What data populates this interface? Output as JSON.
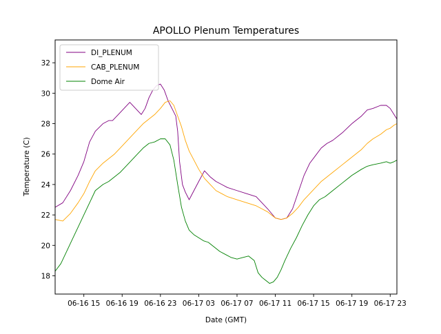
{
  "chart_data": {
    "type": "line",
    "title": "APOLLO Plenum Temperatures",
    "xlabel": "Date (GMT)",
    "ylabel": "Temperature (C)",
    "x_unit": "hours since 06-16 00:00 GMT",
    "xlim": [
      12.0,
      47.7
    ],
    "ylim": [
      16.8,
      33.5
    ],
    "x_ticks": [
      {
        "value": 15,
        "label": "06-16 15"
      },
      {
        "value": 19,
        "label": "06-16 19"
      },
      {
        "value": 23,
        "label": "06-16 23"
      },
      {
        "value": 27,
        "label": "06-17 03"
      },
      {
        "value": 31,
        "label": "06-17 07"
      },
      {
        "value": 35,
        "label": "06-17 11"
      },
      {
        "value": 39,
        "label": "06-17 15"
      },
      {
        "value": 43,
        "label": "06-17 19"
      },
      {
        "value": 47,
        "label": "06-17 23"
      }
    ],
    "y_ticks": [
      {
        "value": 18,
        "label": "18"
      },
      {
        "value": 20,
        "label": "20"
      },
      {
        "value": 22,
        "label": "22"
      },
      {
        "value": 24,
        "label": "24"
      },
      {
        "value": 26,
        "label": "26"
      },
      {
        "value": 28,
        "label": "28"
      },
      {
        "value": 30,
        "label": "30"
      },
      {
        "value": 32,
        "label": "32"
      }
    ],
    "grid": false,
    "legend_position": "top-left",
    "series": [
      {
        "name": "DI_PLENUM",
        "color": "#800080",
        "x": [
          12.0,
          12.8,
          13.6,
          14.4,
          15.0,
          15.6,
          16.2,
          17.0,
          17.6,
          18.0,
          18.6,
          19.2,
          19.8,
          20.4,
          21.0,
          21.4,
          21.8,
          22.2,
          22.6,
          23.0,
          23.4,
          23.8,
          24.2,
          24.6,
          24.8,
          25.0,
          25.3,
          25.6,
          26.0,
          26.5,
          27.0,
          27.6,
          28.2,
          28.8,
          29.4,
          30.0,
          31.0,
          32.0,
          33.0,
          33.6,
          34.2,
          34.6,
          35.0,
          35.6,
          36.2,
          36.8,
          37.4,
          38.0,
          38.6,
          39.2,
          39.8,
          40.4,
          41.0,
          42.0,
          43.0,
          44.0,
          44.6,
          45.2,
          46.0,
          46.6,
          47.0,
          47.4,
          47.7
        ],
        "y": [
          22.5,
          22.8,
          23.6,
          24.6,
          25.5,
          26.8,
          27.5,
          28.0,
          28.2,
          28.2,
          28.6,
          29.0,
          29.4,
          29.0,
          28.6,
          29.0,
          29.7,
          30.2,
          30.5,
          30.6,
          30.2,
          29.5,
          29.0,
          28.5,
          27.5,
          25.5,
          24.0,
          23.5,
          23.0,
          23.6,
          24.2,
          24.9,
          24.5,
          24.2,
          24.0,
          23.8,
          23.6,
          23.4,
          23.2,
          22.8,
          22.4,
          22.1,
          21.8,
          21.7,
          21.8,
          22.4,
          23.5,
          24.6,
          25.4,
          25.9,
          26.4,
          26.7,
          26.9,
          27.4,
          28.0,
          28.5,
          28.9,
          29.0,
          29.2,
          29.2,
          29.0,
          28.6,
          28.3
        ]
      },
      {
        "name": "CAB_PLENUM",
        "color": "#FFA500",
        "x": [
          12.0,
          12.8,
          13.6,
          14.4,
          15.0,
          15.6,
          16.2,
          17.0,
          17.6,
          18.2,
          18.8,
          19.4,
          20.0,
          20.6,
          21.2,
          21.8,
          22.4,
          23.0,
          23.5,
          24.0,
          24.4,
          24.8,
          25.2,
          25.6,
          26.0,
          26.5,
          27.0,
          27.6,
          28.2,
          28.8,
          29.4,
          30.0,
          31.0,
          32.0,
          33.0,
          33.6,
          34.2,
          34.6,
          35.0,
          35.6,
          36.2,
          36.8,
          37.4,
          38.0,
          38.6,
          39.2,
          39.8,
          40.4,
          41.0,
          42.0,
          43.0,
          44.0,
          44.6,
          45.2,
          46.0,
          46.6,
          47.0,
          47.4,
          47.7
        ],
        "y": [
          21.7,
          21.6,
          22.1,
          22.8,
          23.4,
          24.2,
          24.9,
          25.4,
          25.7,
          26.0,
          26.4,
          26.8,
          27.2,
          27.6,
          28.0,
          28.3,
          28.6,
          29.0,
          29.4,
          29.5,
          29.2,
          28.5,
          27.8,
          26.9,
          26.2,
          25.6,
          25.0,
          24.4,
          24.0,
          23.6,
          23.4,
          23.2,
          23.0,
          22.8,
          22.6,
          22.4,
          22.2,
          22.0,
          21.8,
          21.7,
          21.8,
          22.1,
          22.5,
          23.0,
          23.4,
          23.8,
          24.2,
          24.5,
          24.8,
          25.3,
          25.8,
          26.3,
          26.7,
          27.0,
          27.3,
          27.6,
          27.7,
          27.9,
          28.0
        ]
      },
      {
        "name": "Dome Air",
        "color": "#008000",
        "x": [
          12.0,
          12.6,
          13.2,
          13.8,
          14.4,
          15.0,
          15.6,
          16.2,
          17.0,
          17.6,
          18.2,
          18.8,
          19.4,
          20.0,
          20.6,
          21.2,
          21.8,
          22.4,
          23.0,
          23.5,
          24.0,
          24.4,
          24.8,
          25.2,
          25.6,
          26.0,
          26.5,
          27.0,
          27.5,
          28.0,
          28.6,
          29.2,
          29.8,
          30.4,
          31.0,
          31.6,
          32.2,
          32.8,
          33.2,
          33.6,
          34.0,
          34.4,
          34.8,
          35.2,
          35.6,
          36.0,
          36.6,
          37.2,
          37.8,
          38.4,
          39.0,
          39.6,
          40.2,
          41.0,
          42.0,
          43.0,
          44.0,
          44.6,
          45.2,
          46.0,
          46.6,
          47.0,
          47.4,
          47.7
        ],
        "y": [
          18.3,
          18.8,
          19.6,
          20.4,
          21.2,
          22.0,
          22.8,
          23.6,
          24.0,
          24.2,
          24.5,
          24.8,
          25.2,
          25.6,
          26.0,
          26.4,
          26.7,
          26.8,
          27.0,
          27.0,
          26.6,
          25.6,
          24.0,
          22.5,
          21.6,
          21.0,
          20.7,
          20.5,
          20.3,
          20.2,
          19.9,
          19.6,
          19.4,
          19.2,
          19.1,
          19.2,
          19.3,
          19.0,
          18.2,
          17.9,
          17.7,
          17.5,
          17.6,
          17.9,
          18.4,
          19.0,
          19.8,
          20.5,
          21.3,
          22.0,
          22.6,
          23.0,
          23.2,
          23.6,
          24.1,
          24.6,
          25.0,
          25.2,
          25.3,
          25.4,
          25.5,
          25.4,
          25.5,
          25.6
        ]
      }
    ]
  }
}
